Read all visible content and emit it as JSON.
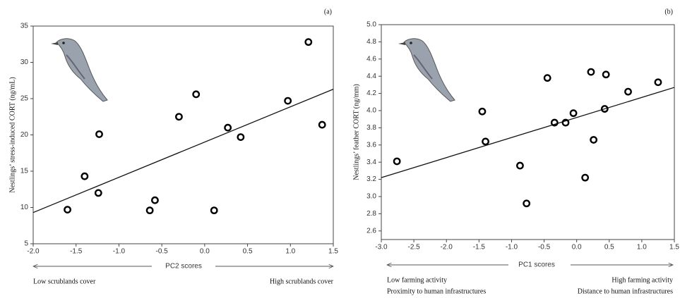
{
  "chart_data": [
    {
      "type": "scatter",
      "panel_label": "(a)",
      "y_label": "Nestlings’ stress-induced CORT (ng/mL)",
      "x_label": "PC2 scores",
      "annotations": [
        "Low scrublands cover",
        "High scrublands cover"
      ],
      "x": [
        -1.6,
        -1.4,
        -1.23,
        -1.24,
        -0.64,
        -0.58,
        -0.3,
        -0.1,
        0.11,
        0.27,
        0.42,
        0.97,
        1.21,
        1.37
      ],
      "values": [
        9.7,
        14.3,
        20.1,
        12.0,
        9.6,
        11.0,
        22.5,
        25.6,
        9.6,
        21.0,
        19.7,
        24.7,
        32.8,
        21.4
      ],
      "color": "#000000",
      "trend_line": {
        "x": [
          -2.0,
          1.5
        ],
        "y": [
          9.3,
          26.3
        ]
      },
      "xlim": [
        -2.0,
        1.5
      ],
      "ylim": [
        5,
        35
      ],
      "xticks": [
        {
          "value": -2.0,
          "label": "-2.0"
        },
        -1.5,
        {
          "value": -1.0,
          "label": "-1.0"
        },
        -0.5,
        {
          "value": 0.0,
          "label": "0.0"
        },
        0.5,
        {
          "value": 1.0,
          "label": "1.0"
        },
        1.5
      ],
      "yticks": [
        5,
        10,
        15,
        20,
        25,
        30,
        35
      ]
    },
    {
      "type": "scatter",
      "panel_label": "(b)",
      "y_label": "Nestlings’ feather CORT (ng/mm)",
      "x_label": "PC1 scores",
      "annotations": [
        "Low farming activity",
        "Proximity to human infrastructures",
        "High farming activity",
        "Distance to human infrastructures"
      ],
      "x": [
        -2.76,
        -1.45,
        -1.4,
        -0.87,
        -0.77,
        -0.45,
        -0.34,
        -0.17,
        -0.05,
        0.13,
        0.22,
        0.26,
        0.43,
        0.45,
        0.79,
        1.25
      ],
      "values": [
        3.41,
        3.99,
        3.64,
        3.36,
        2.92,
        4.38,
        3.86,
        3.86,
        3.97,
        3.22,
        4.45,
        3.66,
        4.02,
        4.42,
        4.22,
        4.33
      ],
      "color": "#000000",
      "trend_line": {
        "x": [
          -3.0,
          1.5
        ],
        "y": [
          3.22,
          4.27
        ]
      },
      "xlim": [
        -3.0,
        1.5
      ],
      "ylim": [
        2.5,
        5.0
      ],
      "xticks": [
        {
          "value": -3.0,
          "label": "-3.0"
        },
        -2.5,
        {
          "value": -2.0,
          "label": "-2.0"
        },
        -1.5,
        {
          "value": -1.0,
          "label": "-1.0"
        },
        -0.5,
        {
          "value": 0.0,
          "label": "0.0"
        },
        0.5,
        {
          "value": 1.0,
          "label": "1.0"
        },
        1.5
      ],
      "yticks": [
        2.6,
        2.8,
        {
          "value": 3.0,
          "label": "3.0"
        },
        3.2,
        3.4,
        3.6,
        3.8,
        {
          "value": 4.0,
          "label": "4.0"
        },
        4.2,
        4.4,
        4.6,
        4.8,
        {
          "value": 5.0,
          "label": "5.0"
        }
      ]
    }
  ]
}
